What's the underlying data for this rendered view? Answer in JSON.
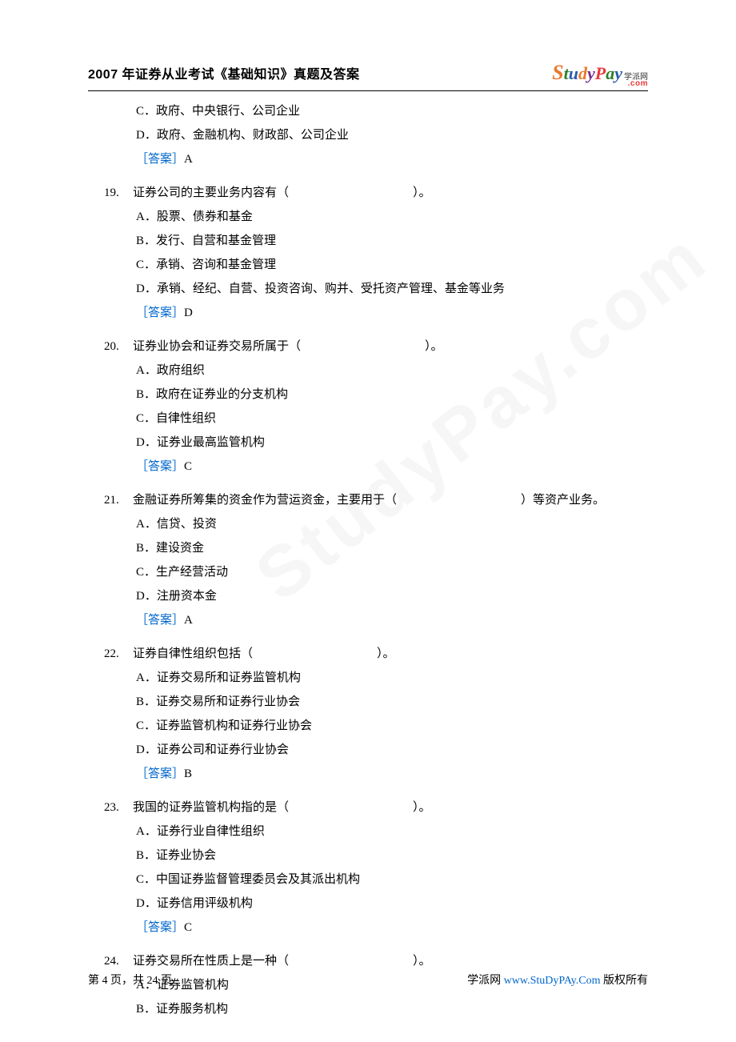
{
  "header": {
    "title": "2007 年证券从业考试《基础知识》真题及答案",
    "logo_cn": "学派网",
    "logo_com": ".com"
  },
  "watermark": "StudyPay.com",
  "top_options": {
    "c": "C．政府、中央银行、公司企业",
    "d": "D．政府、金融机构、财政部、公司企业",
    "ans_label": "［答案］",
    "ans_value": "A"
  },
  "questions": [
    {
      "num": "19.",
      "stem_pre": "证券公司的主要业务内容有（",
      "stem_post": "）。",
      "opts": {
        "a": "A．股票、债券和基金",
        "b": "B．发行、自营和基金管理",
        "c": "C．承销、咨询和基金管理",
        "d": "D．承销、经纪、自营、投资咨询、购并、受托资产管理、基金等业务"
      },
      "ans_label": "［答案］",
      "ans_value": "D"
    },
    {
      "num": "20.",
      "stem_pre": "证券业协会和证券交易所属于（",
      "stem_post": "）。",
      "opts": {
        "a": "A．政府组织",
        "b": "B．政府在证券业的分支机构",
        "c": "C．自律性组织",
        "d": "D．证券业最高监管机构"
      },
      "ans_label": "［答案］",
      "ans_value": "C"
    },
    {
      "num": "21.",
      "stem_pre": "金融证券所筹集的资金作为营运资金，主要用于（",
      "stem_post": "）等资产业务。",
      "opts": {
        "a": "A．信贷、投资",
        "b": "B．建设资金",
        "c": "C．生产经营活动",
        "d": "D．注册资本金"
      },
      "ans_label": "［答案］",
      "ans_value": "A"
    },
    {
      "num": "22.",
      "stem_pre": "证券自律性组织包括（",
      "stem_post": "）。",
      "opts": {
        "a": "A．证券交易所和证券监管机构",
        "b": "B．证券交易所和证券行业协会",
        "c": "C．证券监管机构和证券行业协会",
        "d": "D．证券公司和证券行业协会"
      },
      "ans_label": "［答案］",
      "ans_value": "B"
    },
    {
      "num": "23.",
      "stem_pre": "我国的证券监管机构指的是（",
      "stem_post": "）。",
      "opts": {
        "a": "A．证券行业自律性组织",
        "b": "B．证券业协会",
        "c": "C．中国证券监督管理委员会及其派出机构",
        "d": "D．证券信用评级机构"
      },
      "ans_label": "［答案］",
      "ans_value": "C"
    },
    {
      "num": "24.",
      "stem_pre": "证券交易所在性质上是一种（",
      "stem_post": "）。",
      "opts": {
        "a": "A．证券监管机构",
        "b": "B．证券服务机构"
      },
      "ans_label": "",
      "ans_value": ""
    }
  ],
  "footer": {
    "page_pre": "第 ",
    "page_cur": "4",
    "page_mid": " 页，共 ",
    "page_total": "24",
    "page_post": " 页",
    "right_pre": "学派网 ",
    "right_link": "www.StuDyPAy.Com",
    "right_post": " 版权所有"
  }
}
